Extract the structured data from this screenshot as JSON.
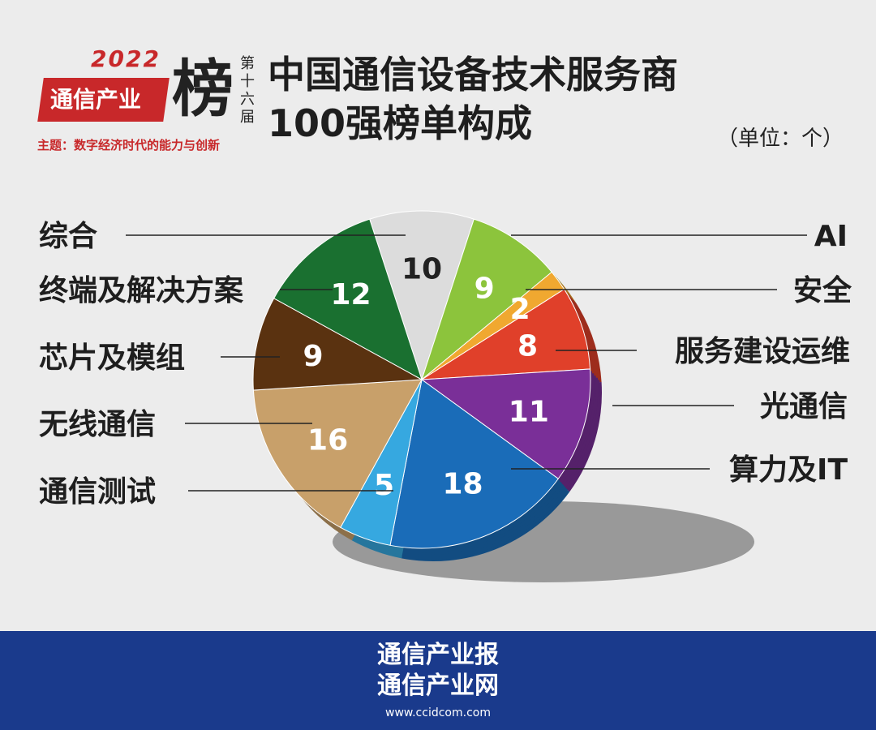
{
  "logo": {
    "year": "2022",
    "brand": "通信产业",
    "big_char": "榜",
    "edition": "第十六届",
    "theme": "主题：数字经济时代的能力与创新"
  },
  "title_line1": "中国通信设备技术服务商",
  "title_line2": "100强榜单构成",
  "unit": "（单位：个）",
  "chart_data": {
    "type": "pie",
    "title": "中国通信设备技术服务商100强榜单构成",
    "unit": "个",
    "categories": [
      "综合",
      "AI",
      "安全",
      "服务建设运维",
      "光通信",
      "算力及IT",
      "通信测试",
      "无线通信",
      "芯片及模组",
      "终端及解决方案"
    ],
    "values": [
      10,
      9,
      2,
      8,
      11,
      18,
      5,
      16,
      9,
      12
    ],
    "colors": [
      "#dcdcdc",
      "#8cc43c",
      "#f0a830",
      "#e0402a",
      "#7a2f98",
      "#1a6cb8",
      "#36a8e0",
      "#c8a06a",
      "#5a3210",
      "#1a7030"
    ]
  },
  "footer": {
    "line1": "通信产业报",
    "line2": "通信产业网",
    "url": "www.ccidcom.com"
  }
}
